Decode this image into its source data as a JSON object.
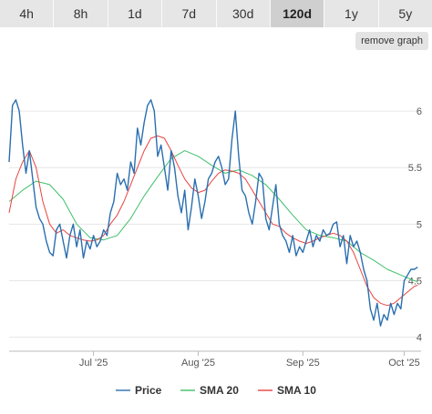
{
  "timeframes": {
    "items": [
      "4h",
      "8h",
      "1d",
      "7d",
      "30d",
      "120d",
      "1y",
      "5y"
    ],
    "active": "120d"
  },
  "toolbar": {
    "remove_graph_label": "remove graph"
  },
  "colors": {
    "price": "#2a6fb0",
    "sma20": "#40bf6a",
    "sma10": "#e8433f",
    "grid": "#e6e6e6"
  },
  "chart_data": {
    "type": "line",
    "x_ticks": [
      "Jul '25",
      "Aug '25",
      "Sep '25",
      "Oct '25"
    ],
    "x_tick_days": [
      25,
      56,
      87,
      117
    ],
    "y_ticks": [
      "4",
      "4.5",
      "5",
      "5.5",
      "6"
    ],
    "y_tick_values": [
      4,
      4.5,
      5,
      5.5,
      6
    ],
    "ylim": [
      3.9,
      6.5
    ],
    "xlim": [
      0,
      122
    ],
    "grid": "horizontal",
    "legend": "bottom-center",
    "series": [
      {
        "name": "Price",
        "color": "#2a6fb0",
        "x": [
          0,
          1,
          2,
          3,
          4,
          5,
          6,
          7,
          8,
          9,
          10,
          11,
          12,
          13,
          14,
          15,
          16,
          17,
          18,
          19,
          20,
          21,
          22,
          23,
          24,
          25,
          26,
          27,
          28,
          29,
          30,
          31,
          32,
          33,
          34,
          35,
          36,
          37,
          38,
          39,
          40,
          41,
          42,
          43,
          44,
          45,
          46,
          47,
          48,
          49,
          50,
          51,
          52,
          53,
          54,
          55,
          56,
          57,
          58,
          59,
          60,
          61,
          62,
          63,
          64,
          65,
          66,
          67,
          68,
          69,
          70,
          71,
          72,
          73,
          74,
          75,
          76,
          77,
          78,
          79,
          80,
          81,
          82,
          83,
          84,
          85,
          86,
          87,
          88,
          89,
          90,
          91,
          92,
          93,
          94,
          95,
          96,
          97,
          98,
          99,
          100,
          101,
          102,
          103,
          104,
          105,
          106,
          107,
          108,
          109,
          110,
          111,
          112,
          113,
          114,
          115,
          116,
          117,
          118,
          119,
          120,
          121
        ],
        "values": [
          5.55,
          6.05,
          6.1,
          6.0,
          5.7,
          5.45,
          5.65,
          5.4,
          5.15,
          5.05,
          5.0,
          4.85,
          4.75,
          4.72,
          4.95,
          5.0,
          4.85,
          4.7,
          4.9,
          5.0,
          4.8,
          4.95,
          4.7,
          4.85,
          4.78,
          4.9,
          4.8,
          4.85,
          4.95,
          4.9,
          5.1,
          5.2,
          5.45,
          5.35,
          5.4,
          5.3,
          5.55,
          5.45,
          5.85,
          5.7,
          5.9,
          6.05,
          6.1,
          6.0,
          5.6,
          5.7,
          5.5,
          5.3,
          5.65,
          5.5,
          5.25,
          5.1,
          5.3,
          4.95,
          5.15,
          5.4,
          5.25,
          5.05,
          5.2,
          5.4,
          5.45,
          5.55,
          5.6,
          5.5,
          5.35,
          5.4,
          5.75,
          6.0,
          5.6,
          5.3,
          5.25,
          5.1,
          5.0,
          5.2,
          5.45,
          5.4,
          5.05,
          4.95,
          5.15,
          5.35,
          5.0,
          4.9,
          4.85,
          4.75,
          4.9,
          4.72,
          4.8,
          4.75,
          4.85,
          4.95,
          4.8,
          4.9,
          4.85,
          4.95,
          4.9,
          4.92,
          5.0,
          5.02,
          4.8,
          4.9,
          4.65,
          4.9,
          4.8,
          4.85,
          4.75,
          4.6,
          4.5,
          4.25,
          4.15,
          4.3,
          4.1,
          4.2,
          4.15,
          4.3,
          4.2,
          4.3,
          4.25,
          4.5,
          4.55,
          4.6,
          4.6,
          4.62
        ]
      },
      {
        "name": "SMA 20",
        "color": "#40bf6a",
        "x": [
          0,
          4,
          8,
          12,
          16,
          20,
          24,
          28,
          32,
          36,
          40,
          44,
          48,
          52,
          56,
          60,
          64,
          68,
          72,
          76,
          80,
          84,
          88,
          92,
          96,
          100,
          104,
          108,
          112,
          116,
          120,
          121
        ],
        "values": [
          5.2,
          5.3,
          5.38,
          5.35,
          5.22,
          5.0,
          4.88,
          4.86,
          4.9,
          5.05,
          5.25,
          5.42,
          5.58,
          5.65,
          5.6,
          5.52,
          5.45,
          5.48,
          5.43,
          5.35,
          5.22,
          5.08,
          4.95,
          4.9,
          4.88,
          4.85,
          4.75,
          4.68,
          4.6,
          4.55,
          4.5,
          4.49
        ]
      },
      {
        "name": "SMA 10",
        "color": "#e8433f",
        "x": [
          0,
          2,
          4,
          6,
          8,
          10,
          12,
          14,
          16,
          18,
          20,
          22,
          24,
          26,
          28,
          30,
          32,
          34,
          36,
          38,
          40,
          42,
          44,
          46,
          48,
          50,
          52,
          54,
          56,
          58,
          60,
          62,
          64,
          66,
          68,
          70,
          72,
          74,
          76,
          78,
          80,
          82,
          84,
          86,
          88,
          90,
          92,
          94,
          96,
          98,
          100,
          102,
          104,
          106,
          108,
          110,
          112,
          114,
          116,
          118,
          120,
          121
        ],
        "values": [
          5.1,
          5.4,
          5.55,
          5.65,
          5.5,
          5.2,
          5.0,
          4.92,
          4.95,
          4.9,
          4.88,
          4.86,
          4.85,
          4.86,
          4.9,
          5.0,
          5.08,
          5.2,
          5.35,
          5.5,
          5.65,
          5.76,
          5.78,
          5.76,
          5.65,
          5.52,
          5.4,
          5.32,
          5.28,
          5.3,
          5.38,
          5.45,
          5.48,
          5.47,
          5.45,
          5.4,
          5.3,
          5.2,
          5.1,
          5.0,
          4.98,
          4.92,
          4.88,
          4.85,
          4.83,
          4.85,
          4.88,
          4.9,
          4.92,
          4.9,
          4.85,
          4.75,
          4.6,
          4.45,
          4.35,
          4.3,
          4.28,
          4.3,
          4.35,
          4.4,
          4.45,
          4.46
        ]
      }
    ]
  }
}
